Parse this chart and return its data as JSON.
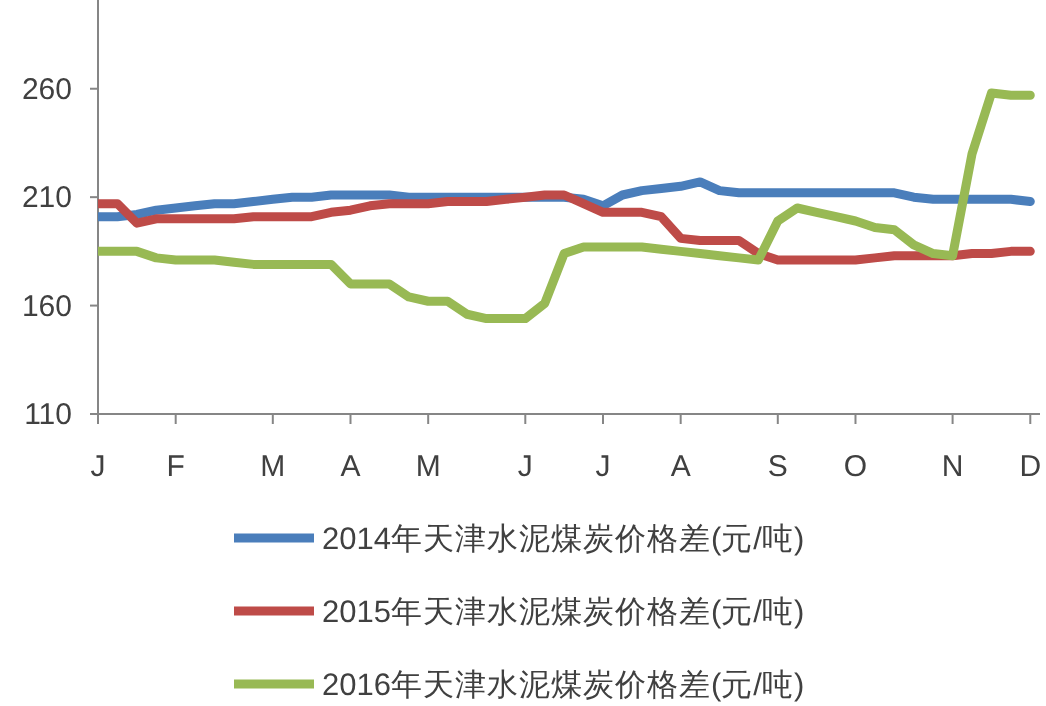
{
  "chart_data": {
    "type": "line",
    "ylim": [
      110,
      300
    ],
    "yticks": [
      110,
      160,
      210,
      260
    ],
    "categories": [
      "J",
      null,
      null,
      null,
      "F",
      null,
      null,
      null,
      null,
      "M",
      null,
      null,
      null,
      "A",
      null,
      null,
      null,
      "M",
      null,
      null,
      null,
      null,
      "J",
      null,
      null,
      null,
      "J",
      null,
      null,
      null,
      "A",
      null,
      null,
      null,
      null,
      "S",
      null,
      null,
      null,
      "O",
      null,
      null,
      null,
      null,
      "N",
      null,
      null,
      null,
      "D"
    ],
    "grid": false,
    "legend": "bottom",
    "marker": "none",
    "line_style": "solid",
    "series": [
      {
        "name": "2014年天津水泥煤炭价格差(元/吨)",
        "color": "#4a7ebb",
        "values": [
          201,
          201,
          202,
          204,
          205,
          206,
          207,
          207,
          208,
          209,
          210,
          210,
          211,
          211,
          211,
          211,
          210,
          210,
          210,
          210,
          210,
          210,
          210,
          210,
          210,
          209,
          206,
          211,
          213,
          214,
          215,
          217,
          213,
          212,
          212,
          212,
          212,
          212,
          212,
          212,
          212,
          212,
          210,
          209,
          209,
          209,
          209,
          209,
          208
        ]
      },
      {
        "name": "2015年天津水泥煤炭价格差(元/吨)",
        "color": "#be4b48",
        "values": [
          207,
          207,
          198,
          200,
          200,
          200,
          200,
          200,
          201,
          201,
          201,
          201,
          203,
          204,
          206,
          207,
          207,
          207,
          208,
          208,
          208,
          209,
          210,
          211,
          211,
          207,
          203,
          203,
          203,
          201,
          191,
          190,
          190,
          190,
          184,
          181,
          181,
          181,
          181,
          181,
          182,
          183,
          183,
          183,
          183,
          184,
          184,
          185,
          185
        ]
      },
      {
        "name": "2016年天津水泥煤炭价格差(元/吨)",
        "color": "#98b954",
        "values": [
          185,
          185,
          185,
          182,
          181,
          181,
          181,
          180,
          179,
          179,
          179,
          179,
          179,
          170,
          170,
          170,
          164,
          162,
          162,
          156,
          154,
          154,
          154,
          161,
          184,
          187,
          187,
          187,
          187,
          186,
          185,
          184,
          183,
          182,
          181,
          199,
          205,
          203,
          201,
          199,
          196,
          195,
          188,
          184,
          183,
          230,
          258,
          257,
          257
        ]
      }
    ]
  }
}
